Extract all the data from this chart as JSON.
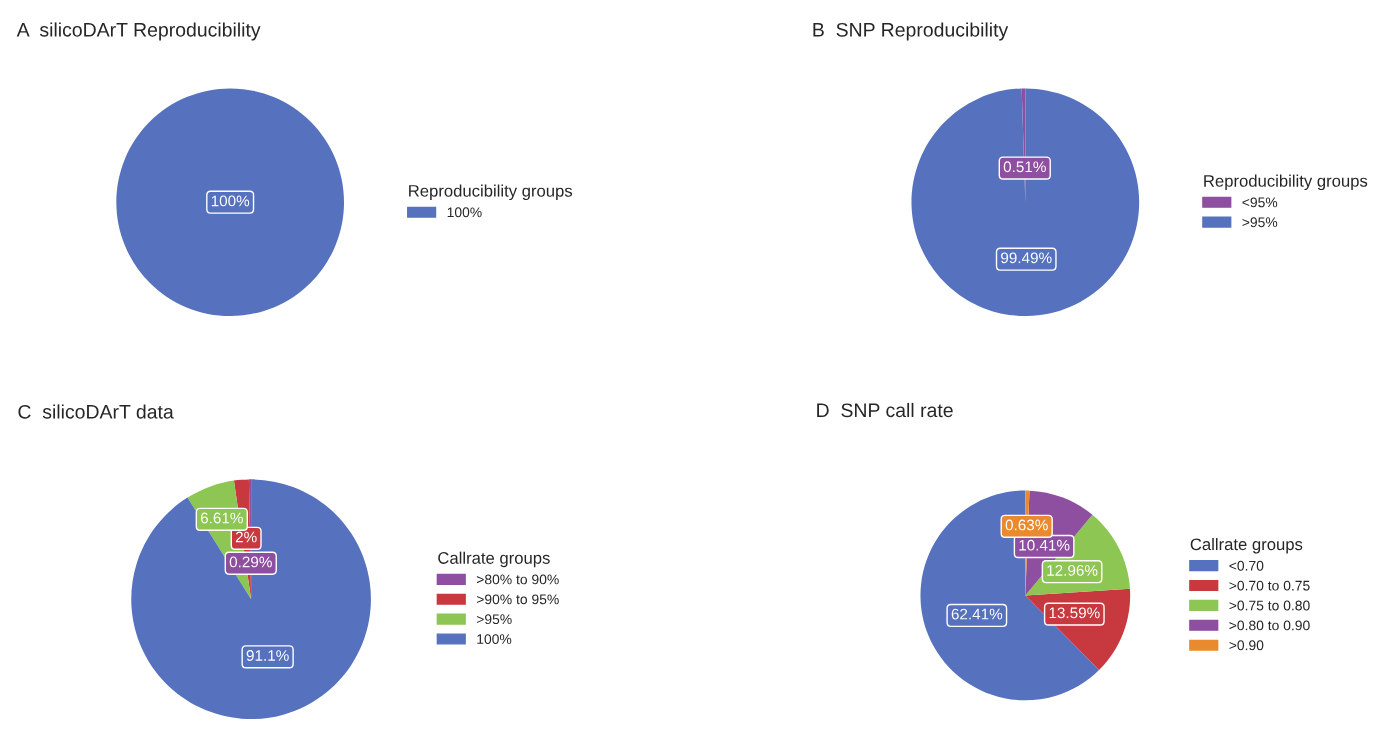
{
  "chart_data": [
    {
      "type": "pie",
      "title": "A  silicoDArT Reproducibility",
      "legend_title": "Reproducibility groups",
      "legend": "right",
      "data_labels": true,
      "categories": [
        "100%"
      ],
      "values": [
        100
      ],
      "value_labels": [
        "100%"
      ],
      "colors": [
        "#5672be"
      ]
    },
    {
      "type": "pie",
      "title": "B  SNP Reproducibility",
      "legend_title": "Reproducibility groups",
      "legend": "right",
      "data_labels": true,
      "categories": [
        "<95%",
        ">95%"
      ],
      "values": [
        0.51,
        99.49
      ],
      "value_labels": [
        "0.51%",
        "99.49%"
      ],
      "colors": [
        "#8e4fa0",
        "#5672be"
      ]
    },
    {
      "type": "pie",
      "title": "C  silicoDArT data",
      "legend_title": "Callrate groups",
      "legend": "right",
      "data_labels": true,
      "categories": [
        ">80% to 90%",
        ">90% to 95%",
        ">95%",
        "100%"
      ],
      "values": [
        0.29,
        2,
        6.61,
        91.1
      ],
      "value_labels": [
        "0.29%",
        "2%",
        "6.61%",
        "91.1%"
      ],
      "colors": [
        "#8e4fa0",
        "#c8393f",
        "#8dc653",
        "#5672be"
      ]
    },
    {
      "type": "pie",
      "title": "D  SNP call rate",
      "legend_title": "Callrate groups",
      "legend": "right",
      "data_labels": true,
      "categories": [
        "<0.70",
        ">0.70 to 0.75",
        ">0.75 to 0.80",
        ">0.80 to 0.90",
        ">0.90"
      ],
      "values": [
        62.41,
        13.59,
        12.96,
        10.41,
        0.63
      ],
      "value_labels": [
        "62.41%",
        "13.59%",
        "12.96%",
        "10.41%",
        "0.63%"
      ],
      "colors": [
        "#5672be",
        "#c8393f",
        "#8dc653",
        "#8e4fa0",
        "#e98a2e"
      ]
    }
  ]
}
